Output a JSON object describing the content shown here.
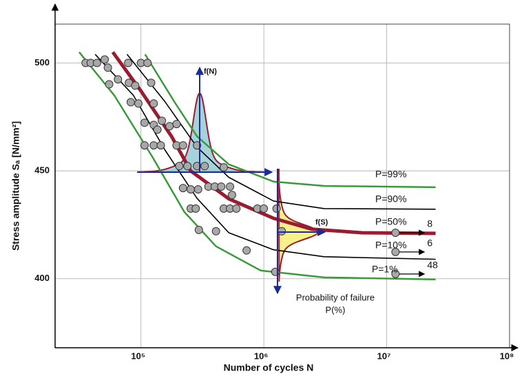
{
  "chart_data": {
    "type": "line",
    "x_label": "Number of cycles   N",
    "y_label": "Stress amplitude Sₐ [N/mm²]",
    "xscale": "log",
    "xlim": [
      20000,
      100000000
    ],
    "xticks": [
      {
        "value": 100000,
        "label": "10⁵"
      },
      {
        "value": 1000000,
        "label": "10⁶"
      },
      {
        "value": 10000000,
        "label": "10⁷"
      },
      {
        "value": 100000000,
        "label": "10⁸"
      }
    ],
    "ylim": [
      368,
      518
    ],
    "yticks": [
      400,
      450,
      500
    ],
    "grid": true,
    "series": [
      {
        "name": "P=99%",
        "color": "#3a9a3a",
        "x": [
          108000,
          188000,
          286000,
          519000,
          1200000,
          3100000,
          25000000
        ],
        "y": [
          504,
          481.8,
          466,
          453,
          445,
          443,
          442.4
        ]
      },
      {
        "name": "P=90%",
        "color": "#000000",
        "x": [
          77000,
          157000,
          286000,
          519000,
          1200000,
          3100000,
          25000000
        ],
        "y": [
          504,
          482,
          461,
          447,
          436,
          432.5,
          432.2
        ]
      },
      {
        "name": "P=50%",
        "color": "#9b1b30",
        "x": [
          59000,
          100000,
          177000,
          254000,
          520000,
          1200000,
          2450000,
          6300000,
          25000000
        ],
        "y": [
          505,
          487,
          466,
          450,
          437,
          428,
          423,
          421.3,
          421
        ]
      },
      {
        "name": "P=10%",
        "color": "#000000",
        "x": [
          42400,
          86700,
          157000,
          286000,
          519000,
          1200000,
          3100000,
          25000000
        ],
        "y": [
          504,
          485,
          459.6,
          437.3,
          421.3,
          413.4,
          410.2,
          409
        ]
      },
      {
        "name": "P=1%",
        "color": "#3a9a3a",
        "x": [
          31400,
          60600,
          124000,
          225000,
          408000,
          942000,
          3100000,
          25000000
        ],
        "y": [
          505,
          485,
          456.4,
          431,
          415,
          403.8,
          400.6,
          399.7
        ]
      }
    ],
    "points": {
      "color": "#a8a8a8",
      "x": [
        35400,
        39000,
        43900,
        50700,
        53800,
        78700,
        100000,
        113000,
        65000,
        55100,
        79800,
        89800,
        121000,
        82600,
        95300,
        127000,
        107000,
        127000,
        148000,
        171000,
        195000,
        136000,
        107000,
        127000,
        145000,
        195000,
        220000,
        286000,
        205000,
        239000,
        286000,
        330000,
        472000,
        220000,
        254000,
        292000,
        354000,
        399000,
        450000,
        531000,
        551000,
        254000,
        279000,
        472000,
        531000,
        598000,
        887000,
        1000000,
        1270000,
        296000,
        408000,
        724000,
        1400000,
        1240000
      ],
      "y": [
        500,
        500,
        500,
        501.6,
        497.8,
        500,
        500,
        500,
        492.4,
        490.1,
        490.8,
        489.5,
        490.8,
        481.8,
        481.2,
        481.2,
        472.3,
        471.3,
        473.2,
        470.7,
        471.7,
        469.1,
        461.8,
        461.8,
        461.8,
        461.8,
        461.8,
        461.8,
        452.2,
        452.2,
        452.2,
        452.2,
        451.6,
        442,
        441.4,
        441.4,
        442.7,
        442.7,
        442.7,
        442.7,
        438.8,
        432.5,
        432.5,
        432.5,
        432.5,
        432.5,
        432.5,
        432.5,
        432.5,
        422.6,
        422,
        413.1,
        422,
        403.2
      ]
    },
    "runouts": {
      "x": [
        11800000,
        11800000,
        11800000
      ],
      "y": [
        421.3,
        412.4,
        402.2
      ],
      "counts": [
        8,
        6,
        48
      ]
    },
    "fn_label": "f(N)",
    "fs_label": "f(S)",
    "failure_label": "Probability of failure",
    "failure_unit": "P(%)"
  }
}
